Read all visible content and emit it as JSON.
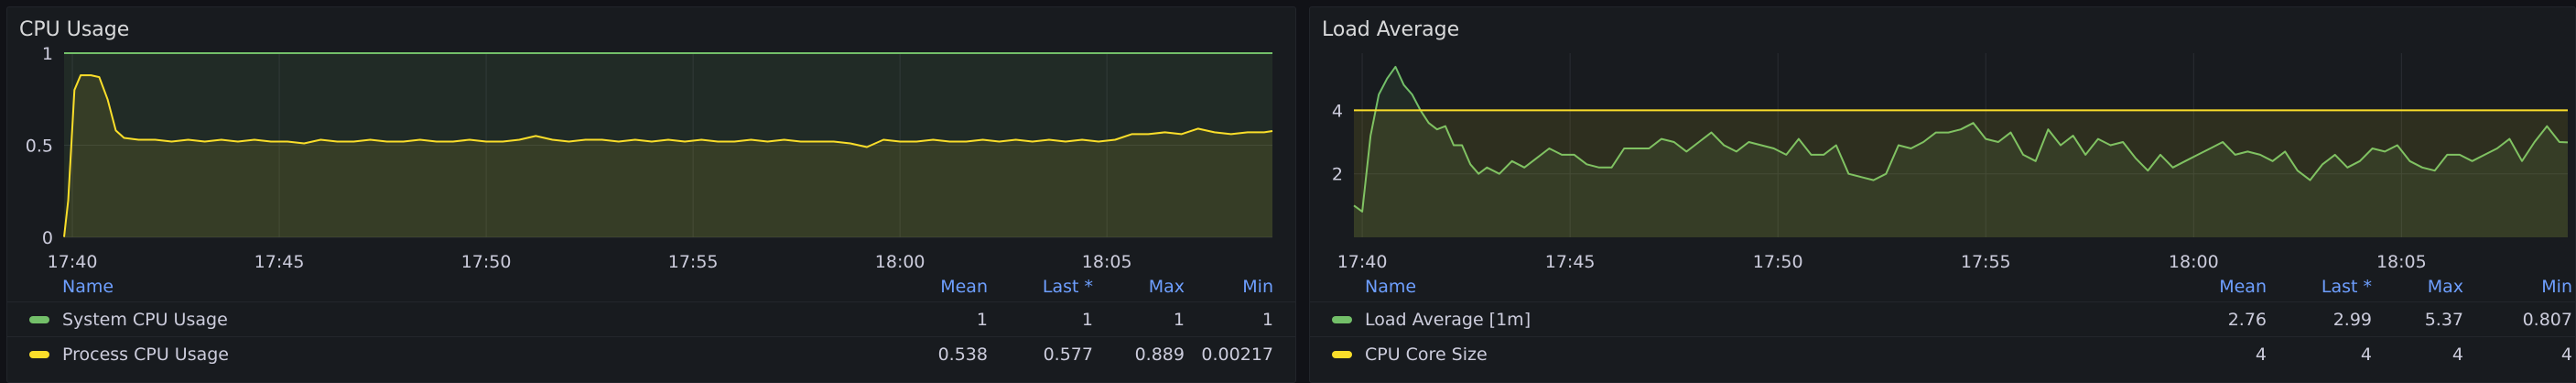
{
  "panels": [
    {
      "title": "CPU Usage",
      "legend": {
        "headers": {
          "name": "Name",
          "mean": "Mean",
          "last": "Last *",
          "max": "Max",
          "min": "Min"
        },
        "rows": [
          {
            "name": "System CPU Usage",
            "color": "#73bf69",
            "mean": "1",
            "last": "1",
            "max": "1",
            "min": "1"
          },
          {
            "name": "Process CPU Usage",
            "color": "#fade2a",
            "mean": "0.538",
            "last": "0.577",
            "max": "0.889",
            "min": "0.00217"
          }
        ]
      }
    },
    {
      "title": "Load Average",
      "legend": {
        "headers": {
          "name": "Name",
          "mean": "Mean",
          "last": "Last *",
          "max": "Max",
          "min": "Min"
        },
        "rows": [
          {
            "name": "Load Average [1m]",
            "color": "#73bf69",
            "mean": "2.76",
            "last": "2.99",
            "max": "5.37",
            "min": "0.807"
          },
          {
            "name": "CPU Core Size",
            "color": "#fade2a",
            "mean": "4",
            "last": "4",
            "max": "4",
            "min": "4"
          }
        ]
      }
    }
  ],
  "chart_data": [
    {
      "type": "line",
      "x_ticks": [
        "17:40",
        "17:45",
        "17:50",
        "17:55",
        "18:00",
        "18:05"
      ],
      "x_tick_minutes": [
        40,
        45,
        50,
        55,
        60,
        65
      ],
      "x_range_minutes": [
        39.8,
        69.0
      ],
      "y_ticks": [
        "0",
        "0.5",
        "1"
      ],
      "y_tick_values": [
        0,
        0.5,
        1
      ],
      "ylim": [
        0,
        1
      ],
      "grid": true,
      "fill_opacity": 0.1,
      "series": [
        {
          "name": "System CPU Usage",
          "color": "#73bf69",
          "x": [
            39.8,
            69.0
          ],
          "y": [
            1,
            1
          ]
        },
        {
          "name": "Process CPU Usage",
          "color": "#fade2a",
          "x": [
            39.8,
            39.9,
            40.05,
            40.2,
            40.45,
            40.65,
            40.85,
            41.05,
            41.25,
            41.6,
            42.0,
            42.4,
            42.8,
            43.2,
            43.6,
            44.0,
            44.4,
            44.8,
            45.2,
            45.6,
            46.0,
            46.4,
            46.8,
            47.2,
            47.6,
            48.0,
            48.4,
            48.8,
            49.2,
            49.6,
            50.0,
            50.4,
            50.8,
            51.2,
            51.6,
            52.0,
            52.4,
            52.8,
            53.2,
            53.6,
            54.0,
            54.4,
            54.8,
            55.2,
            55.6,
            56.0,
            56.4,
            56.8,
            57.2,
            57.6,
            58.0,
            58.4,
            58.8,
            59.2,
            59.6,
            60.0,
            60.4,
            60.8,
            61.2,
            61.6,
            62.0,
            62.4,
            62.8,
            63.2,
            63.6,
            64.0,
            64.4,
            64.8,
            65.2,
            65.6,
            66.0,
            66.4,
            66.8,
            67.2,
            67.6,
            68.0,
            68.4,
            68.8,
            69.0
          ],
          "y": [
            0.002,
            0.2,
            0.8,
            0.88,
            0.88,
            0.87,
            0.75,
            0.58,
            0.54,
            0.53,
            0.53,
            0.52,
            0.53,
            0.52,
            0.53,
            0.52,
            0.53,
            0.52,
            0.52,
            0.51,
            0.53,
            0.52,
            0.52,
            0.53,
            0.52,
            0.52,
            0.53,
            0.52,
            0.52,
            0.53,
            0.52,
            0.52,
            0.53,
            0.55,
            0.53,
            0.52,
            0.53,
            0.53,
            0.52,
            0.53,
            0.52,
            0.53,
            0.52,
            0.53,
            0.52,
            0.52,
            0.53,
            0.52,
            0.53,
            0.52,
            0.52,
            0.52,
            0.51,
            0.49,
            0.53,
            0.52,
            0.52,
            0.53,
            0.52,
            0.52,
            0.53,
            0.52,
            0.53,
            0.52,
            0.53,
            0.52,
            0.53,
            0.52,
            0.53,
            0.56,
            0.56,
            0.57,
            0.56,
            0.59,
            0.57,
            0.56,
            0.57,
            0.57,
            0.577
          ]
        }
      ]
    },
    {
      "type": "line",
      "x_ticks": [
        "17:40",
        "17:45",
        "17:50",
        "17:55",
        "18:00",
        "18:05"
      ],
      "x_tick_minutes": [
        40,
        45,
        50,
        55,
        60,
        65
      ],
      "x_range_minutes": [
        39.8,
        69.0
      ],
      "y_ticks": [
        "2",
        "4"
      ],
      "y_tick_values": [
        2,
        4
      ],
      "ylim": [
        0,
        5.8
      ],
      "grid": true,
      "fill_opacity": 0.1,
      "series": [
        {
          "name": "Load Average [1m]",
          "color": "#73bf69",
          "x": [
            39.8,
            40.0,
            40.2,
            40.4,
            40.6,
            40.8,
            41.0,
            41.2,
            41.4,
            41.6,
            41.8,
            42.0,
            42.2,
            42.4,
            42.6,
            42.8,
            43.0,
            43.3,
            43.6,
            43.9,
            44.2,
            44.5,
            44.8,
            45.1,
            45.4,
            45.7,
            46.0,
            46.3,
            46.6,
            46.9,
            47.2,
            47.5,
            47.8,
            48.1,
            48.4,
            48.7,
            49.0,
            49.3,
            49.6,
            49.9,
            50.2,
            50.5,
            50.8,
            51.1,
            51.4,
            51.7,
            52.0,
            52.3,
            52.6,
            52.9,
            53.2,
            53.5,
            53.8,
            54.1,
            54.4,
            54.7,
            55.0,
            55.3,
            55.6,
            55.9,
            56.2,
            56.5,
            56.8,
            57.1,
            57.4,
            57.7,
            58.0,
            58.3,
            58.6,
            58.9,
            59.2,
            59.5,
            59.8,
            60.1,
            60.4,
            60.7,
            61.0,
            61.3,
            61.6,
            61.9,
            62.2,
            62.5,
            62.8,
            63.1,
            63.4,
            63.7,
            64.0,
            64.3,
            64.6,
            64.9,
            65.2,
            65.5,
            65.8,
            66.1,
            66.4,
            66.7,
            67.0,
            67.3,
            67.6,
            67.9,
            68.2,
            68.5,
            68.8,
            69.0
          ],
          "y": [
            1.0,
            0.81,
            3.2,
            4.5,
            5.0,
            5.37,
            4.8,
            4.5,
            4.0,
            3.6,
            3.4,
            3.5,
            2.9,
            2.9,
            2.3,
            2.0,
            2.2,
            2.0,
            2.4,
            2.2,
            2.5,
            2.8,
            2.6,
            2.6,
            2.3,
            2.2,
            2.2,
            2.8,
            2.8,
            2.8,
            3.1,
            3.0,
            2.7,
            3.0,
            3.3,
            2.9,
            2.7,
            3.0,
            2.9,
            2.8,
            2.6,
            3.1,
            2.6,
            2.6,
            2.9,
            2.0,
            1.9,
            1.8,
            2.0,
            2.9,
            2.8,
            3.0,
            3.3,
            3.3,
            3.4,
            3.6,
            3.1,
            3.0,
            3.3,
            2.6,
            2.4,
            3.4,
            2.9,
            3.2,
            2.6,
            3.1,
            2.9,
            3.0,
            2.5,
            2.1,
            2.6,
            2.2,
            2.4,
            2.6,
            2.8,
            3.0,
            2.6,
            2.7,
            2.6,
            2.4,
            2.7,
            2.1,
            1.8,
            2.3,
            2.6,
            2.2,
            2.4,
            2.8,
            2.7,
            2.9,
            2.4,
            2.2,
            2.1,
            2.6,
            2.6,
            2.4,
            2.6,
            2.8,
            3.1,
            2.4,
            3.0,
            3.5,
            3.0,
            2.99
          ]
        },
        {
          "name": "CPU Core Size",
          "color": "#fade2a",
          "x": [
            39.8,
            69.0
          ],
          "y": [
            4,
            4
          ]
        }
      ]
    }
  ]
}
